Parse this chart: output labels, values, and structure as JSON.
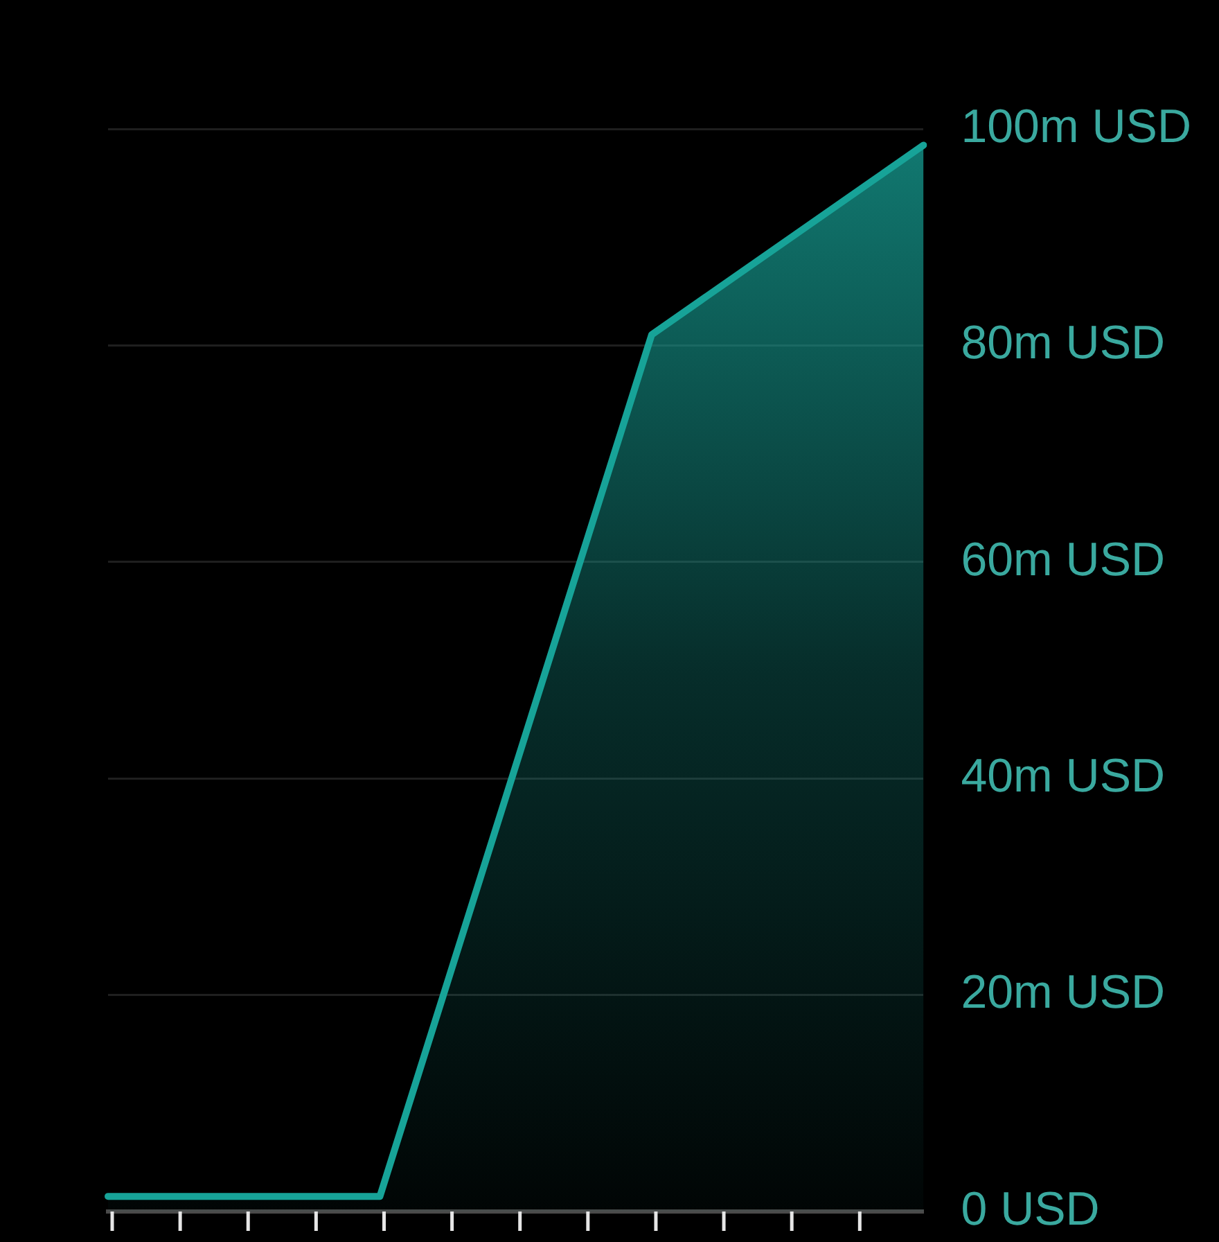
{
  "chart_data": {
    "type": "area",
    "categories": [
      null,
      null,
      null,
      null
    ],
    "values": [
      1.4,
      1.4,
      81,
      98.5
    ],
    "color": "#17a398",
    "ylim": [
      0,
      100
    ],
    "yticks": [
      {
        "value": 0,
        "label": "0 USD"
      },
      {
        "value": 20,
        "label": "20m USD"
      },
      {
        "value": 40,
        "label": "40m USD"
      },
      {
        "value": 60,
        "label": "60m USD"
      },
      {
        "value": 80,
        "label": "80m USD"
      },
      {
        "value": 100,
        "label": "100m USD"
      }
    ],
    "grid": "y",
    "legend": false,
    "tick_labels": "y"
  }
}
